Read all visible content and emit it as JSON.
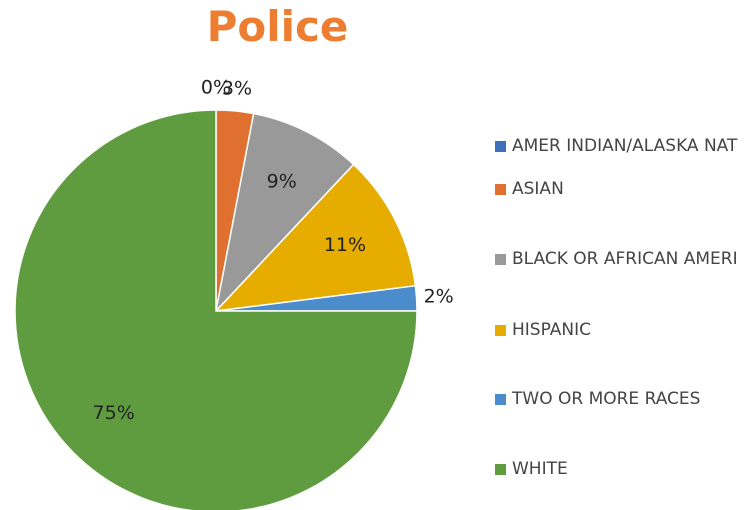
{
  "chart_data": {
    "type": "pie",
    "title": "Police",
    "categories": [
      "AMER INDIAN/ALASKA NAT",
      "ASIAN",
      "BLACK OR AFRICAN AMERI",
      "HISPANIC",
      "TWO OR MORE RACES",
      "WHITE"
    ],
    "values": [
      0,
      3,
      9,
      11,
      2,
      75
    ],
    "value_labels": [
      "0%",
      "3%",
      "9%",
      "11%",
      "2%",
      "75%"
    ],
    "colors": [
      "#3e6fb8",
      "#e07030",
      "#999999",
      "#e6ac00",
      "#4a8ccc",
      "#5f9c3f"
    ],
    "title_color": "#ed7d31",
    "legend": "right"
  }
}
